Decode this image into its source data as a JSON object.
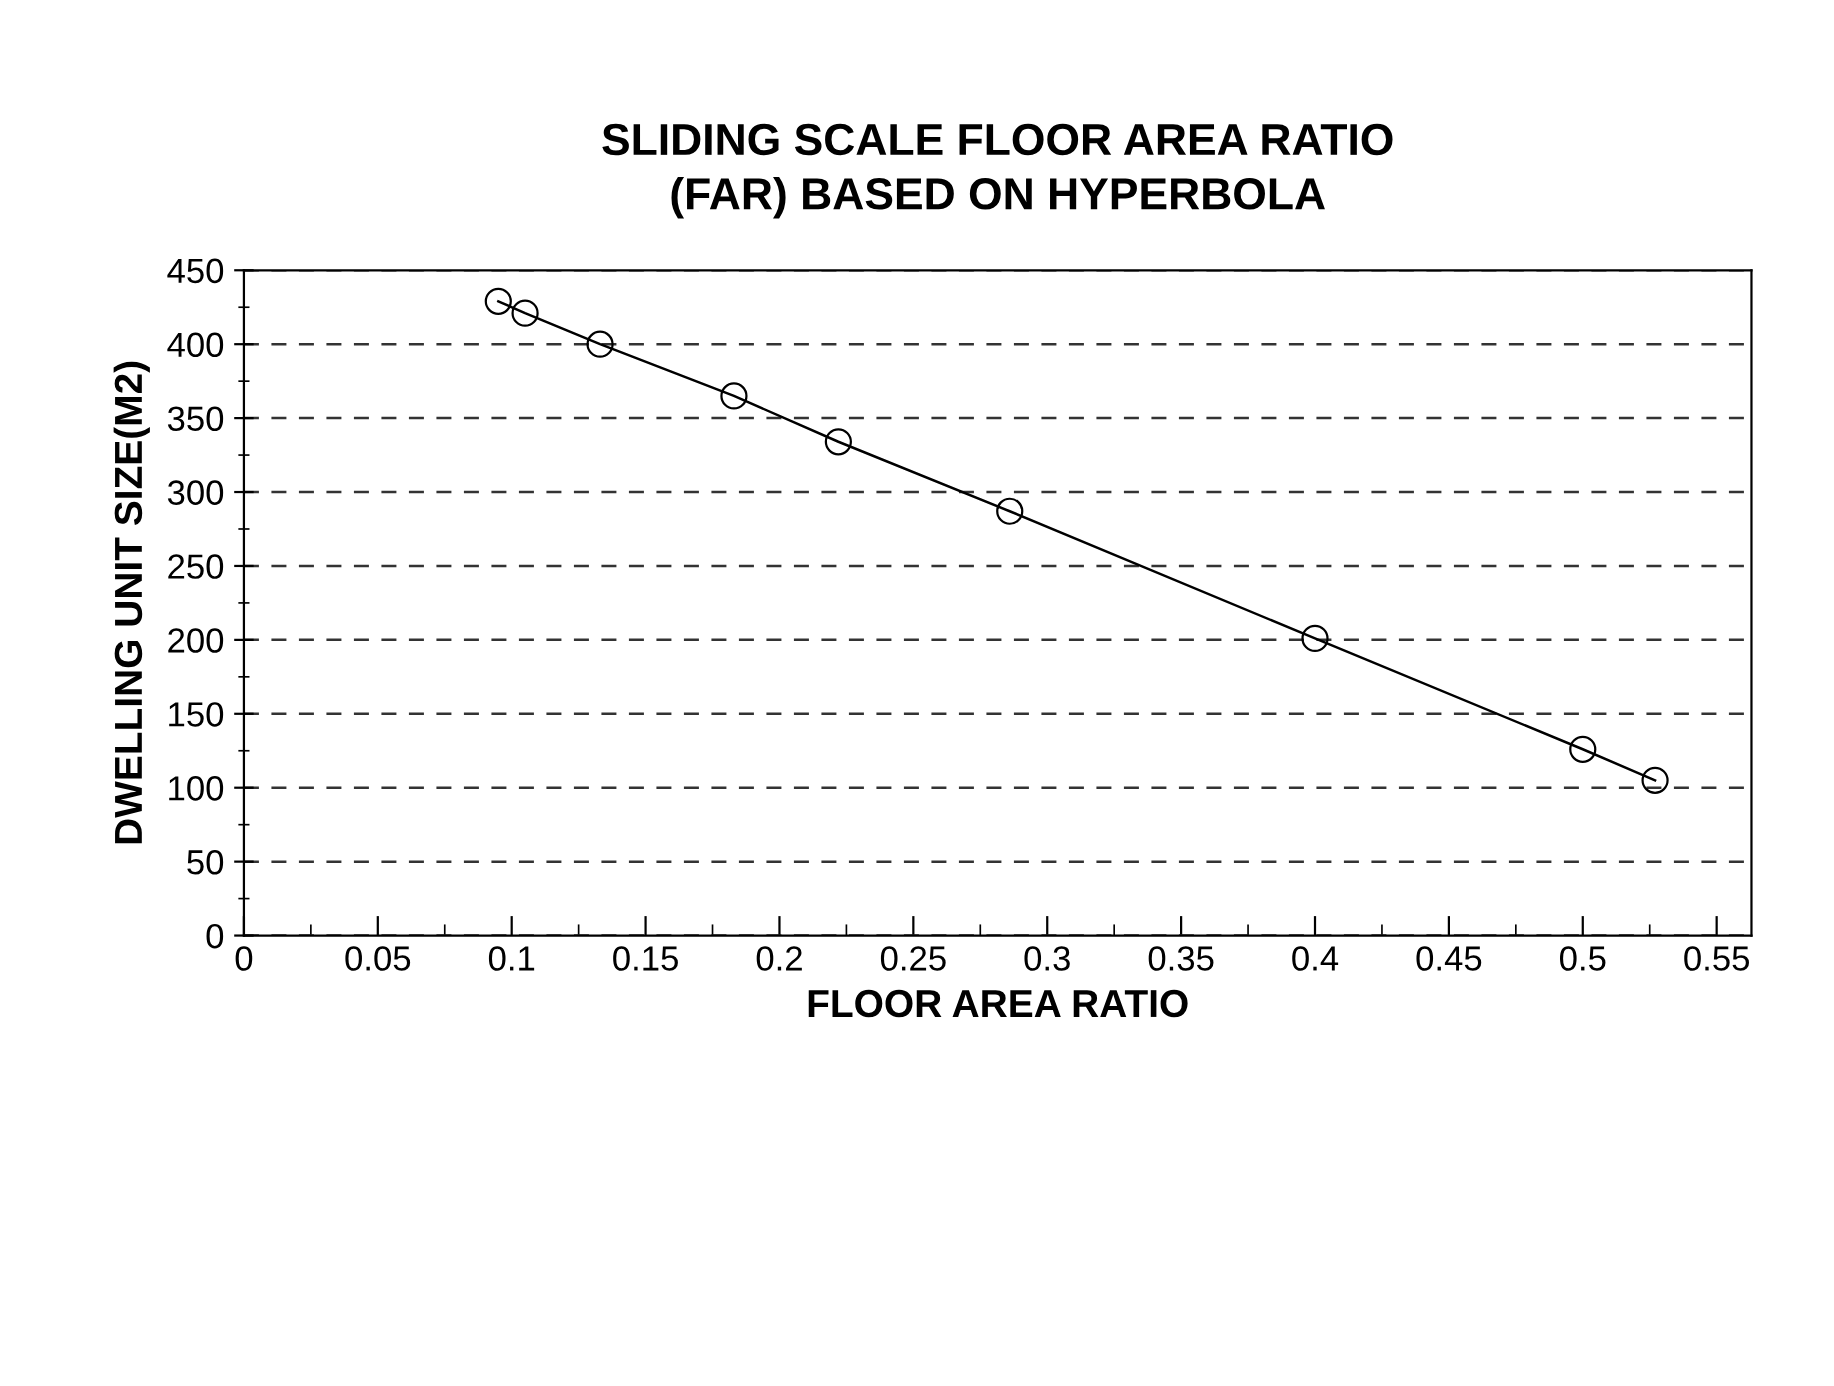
{
  "chart_data": {
    "type": "line",
    "title": "SLIDING SCALE FLOOR AREA RATIO\n(FAR) BASED ON HYPERBOLA",
    "xlabel": "FLOOR AREA RATIO",
    "ylabel": "DWELLING UNIT SIZE(M2)",
    "x": [
      0.095,
      0.105,
      0.133,
      0.183,
      0.222,
      0.286,
      0.4,
      0.5,
      0.527
    ],
    "series": [
      {
        "color": "#000000",
        "values": [
          429,
          421,
          400,
          365,
          334,
          287,
          201,
          126,
          105
        ]
      }
    ],
    "xlim": [
      0,
      0.563
    ],
    "xticks": [
      0,
      0.05,
      0.1,
      0.15,
      0.2,
      0.25,
      0.3,
      0.35,
      0.4,
      0.45,
      0.5,
      0.55
    ],
    "ylim": [
      0,
      450
    ],
    "yticks": [
      0,
      50,
      100,
      150,
      200,
      250,
      300,
      350,
      400,
      450
    ],
    "grid": "y",
    "marker": "circle",
    "line_style": "solid",
    "legend": false
  }
}
